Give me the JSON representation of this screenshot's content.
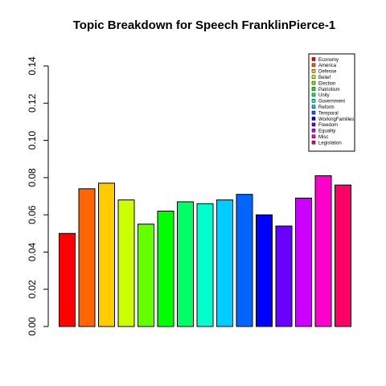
{
  "chart_data": {
    "type": "bar",
    "title": "Topic Breakdown for Speech FranklinPierce-1",
    "xlabel": "",
    "ylabel": "",
    "ylim": [
      0,
      0.14
    ],
    "yticks": [
      "0.00",
      "0.02",
      "0.04",
      "0.06",
      "0.08",
      "0.10",
      "0.12",
      "0.14"
    ],
    "grid": false,
    "legend_position": "top-right",
    "categories": [
      "Economy",
      "America",
      "Defense",
      "Belief",
      "Election",
      "Patriotism",
      "Unity",
      "Government",
      "Reform",
      "Temporal",
      "WorkingFamilies",
      "Freedom",
      "Equality",
      "Misc",
      "Legislation"
    ],
    "values": [
      0.05,
      0.074,
      0.077,
      0.068,
      0.055,
      0.062,
      0.067,
      0.066,
      0.068,
      0.071,
      0.06,
      0.054,
      0.069,
      0.081,
      0.076
    ],
    "colors": [
      "#FF0000",
      "#FF6600",
      "#FFCC00",
      "#CCFF00",
      "#66FF00",
      "#00FF00",
      "#00FF66",
      "#00FFCC",
      "#00CCFF",
      "#0066FF",
      "#0000FF",
      "#6600FF",
      "#CC00FF",
      "#FF00CC",
      "#FF0066"
    ]
  }
}
